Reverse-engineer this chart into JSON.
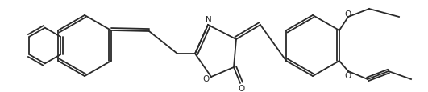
{
  "bg_color": "#ffffff",
  "line_color": "#2a2a2a",
  "figsize": [
    5.31,
    1.16
  ],
  "dpi": 100,
  "lw": 1.3,
  "atoms": {
    "N": "N",
    "O_ring": "O",
    "O_carbonyl": "O",
    "O_ethoxy": "O",
    "O_propynyl": "O"
  }
}
